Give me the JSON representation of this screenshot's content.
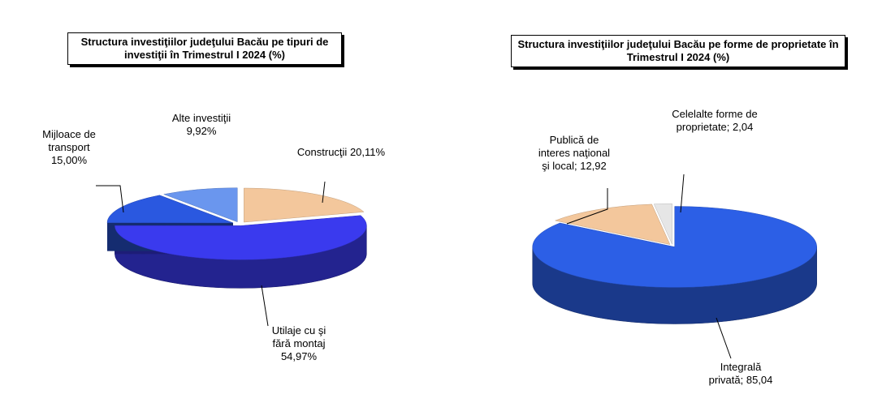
{
  "chart_data": [
    {
      "type": "pie",
      "title": "Structura investiţiilor judeţului Bacău pe tipuri de investiţii în Trimestrul I 2024 (%)",
      "categories": [
        "Construcţii",
        "Utilaje cu şi fără montaj",
        "Mijloace de transport",
        "Alte investiţii"
      ],
      "values": [
        20.11,
        54.97,
        15.0,
        9.92
      ],
      "value_labels": [
        "20,11%",
        "54,97%",
        "15,00%",
        "9,92%"
      ],
      "colors": [
        "#f3c79c",
        "#3a3aee",
        "#2a58e0",
        "#6a96ee"
      ]
    },
    {
      "type": "pie",
      "title": "Structura investiţiilor judeţului Bacău pe forme de proprietate în Trimestrul I 2024 (%)",
      "categories": [
        "Integrală privată;",
        "Publică de interes naţional şi local;",
        "Celelalte forme de proprietate;"
      ],
      "values": [
        85.04,
        12.92,
        2.04
      ],
      "value_labels": [
        "85,04",
        "12,92",
        "2,04"
      ],
      "colors": [
        "#2c5fe6",
        "#f3c79c",
        "#e6e6e6"
      ]
    }
  ]
}
